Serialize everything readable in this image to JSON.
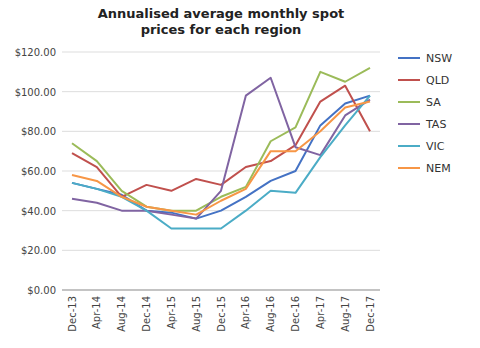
{
  "chart_data": {
    "type": "line",
    "title": "Annualised average monthly spot\nprices for each region",
    "categories": [
      "Dec-13",
      "Apr-14",
      "Aug-14",
      "Dec-14",
      "Apr-15",
      "Aug-15",
      "Dec-15",
      "Apr-16",
      "Aug-16",
      "Dec-16",
      "Apr-17",
      "Aug-17",
      "Dec-17"
    ],
    "series": [
      {
        "name": "NSW",
        "color": "#4472C4",
        "values": [
          54,
          51,
          48,
          40,
          39,
          36,
          40,
          47,
          55,
          60,
          83,
          94,
          98
        ]
      },
      {
        "name": "QLD",
        "color": "#C0504D",
        "values": [
          69,
          62,
          47,
          53,
          50,
          56,
          53,
          62,
          65,
          73,
          95,
          103,
          80
        ]
      },
      {
        "name": "SA",
        "color": "#9BBB59",
        "values": [
          74,
          65,
          50,
          42,
          40,
          40,
          47,
          52,
          75,
          82,
          110,
          105,
          112
        ]
      },
      {
        "name": "TAS",
        "color": "#8064A2",
        "values": [
          46,
          44,
          40,
          40,
          38,
          36,
          50,
          98,
          107,
          72,
          68,
          88,
          96
        ]
      },
      {
        "name": "VIC",
        "color": "#4BACC6",
        "values": [
          54,
          51,
          47,
          40,
          31,
          31,
          31,
          40,
          50,
          49,
          67,
          83,
          98
        ]
      },
      {
        "name": "NEM",
        "color": "#F79646",
        "values": [
          58,
          55,
          47,
          42,
          40,
          38,
          45,
          51,
          70,
          70,
          80,
          92,
          95
        ]
      }
    ],
    "ylim": [
      0,
      120
    ],
    "yticks": [
      {
        "value": 0,
        "label": "$0.00"
      },
      {
        "value": 20,
        "label": "$20.00"
      },
      {
        "value": 40,
        "label": "$40.00"
      },
      {
        "value": 60,
        "label": "$60.00"
      },
      {
        "value": 80,
        "label": "$80.00"
      },
      {
        "value": 100,
        "label": "$100.00"
      },
      {
        "value": 120,
        "label": "$120.00"
      }
    ],
    "grid": true,
    "legend": "right"
  }
}
